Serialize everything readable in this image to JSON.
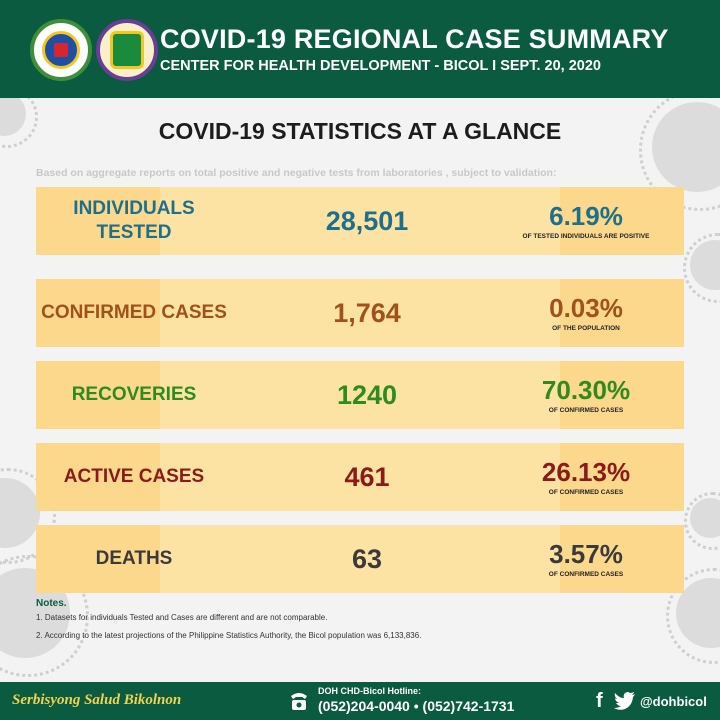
{
  "header": {
    "title": "COVID-19 REGIONAL CASE SUMMARY",
    "subtitle": "CENTER FOR HEALTH DEVELOPMENT - BICOL  I  SEPT. 20, 2020"
  },
  "panel": {
    "title": "COVID-19 STATISTICS AT A GLANCE",
    "subtitle": "Based on aggregate reports on total positive and negative tests from laboratories , subject to validation:"
  },
  "stats": [
    {
      "label": "INDIVIDUALS TESTED",
      "value": "28,501",
      "percent": "6.19%",
      "note": "OF TESTED INDIVIDUALS ARE POSITIVE",
      "color": "#1f6f8b"
    },
    {
      "label": "CONFIRMED CASES",
      "value": "1,764",
      "percent": "0.03%",
      "note": "OF THE POPULATION",
      "color": "#a0521c"
    },
    {
      "label": "RECOVERIES",
      "value": "1240",
      "percent": "70.30%",
      "note": "OF CONFIRMED CASES",
      "color": "#2f8a1f"
    },
    {
      "label": "ACTIVE CASES",
      "value": "461",
      "percent": "26.13%",
      "note": "OF CONFIRMED CASES",
      "color": "#8b1a1a"
    },
    {
      "label": "DEATHS",
      "value": "63",
      "percent": "3.57%",
      "note": "OF CONFIRMED CASES",
      "color": "#3a3a3a"
    }
  ],
  "notes": {
    "title": "Notes.",
    "items": [
      "1. Datasets for individuals Tested and Cases are different and are not comparable.",
      "2. According to the latest projections of the Philippine Statistics Authority, the Bicol population was 6,133,836."
    ]
  },
  "footer": {
    "slogan": "Serbisyong Salud Bikolnon",
    "hotline_label": "DOH CHD-Bicol Hotline:",
    "hotline_numbers": "(052)204-0040  •  (052)742-1731",
    "social_handle": "@dohbicol"
  },
  "icons": {
    "phone": "phone-icon",
    "facebook": "facebook-icon",
    "twitter": "twitter-icon"
  },
  "colors": {
    "brand_green": "#0a5b3f",
    "row_fill": "#fde3a3",
    "slogan_yellow": "#f6d24b"
  }
}
